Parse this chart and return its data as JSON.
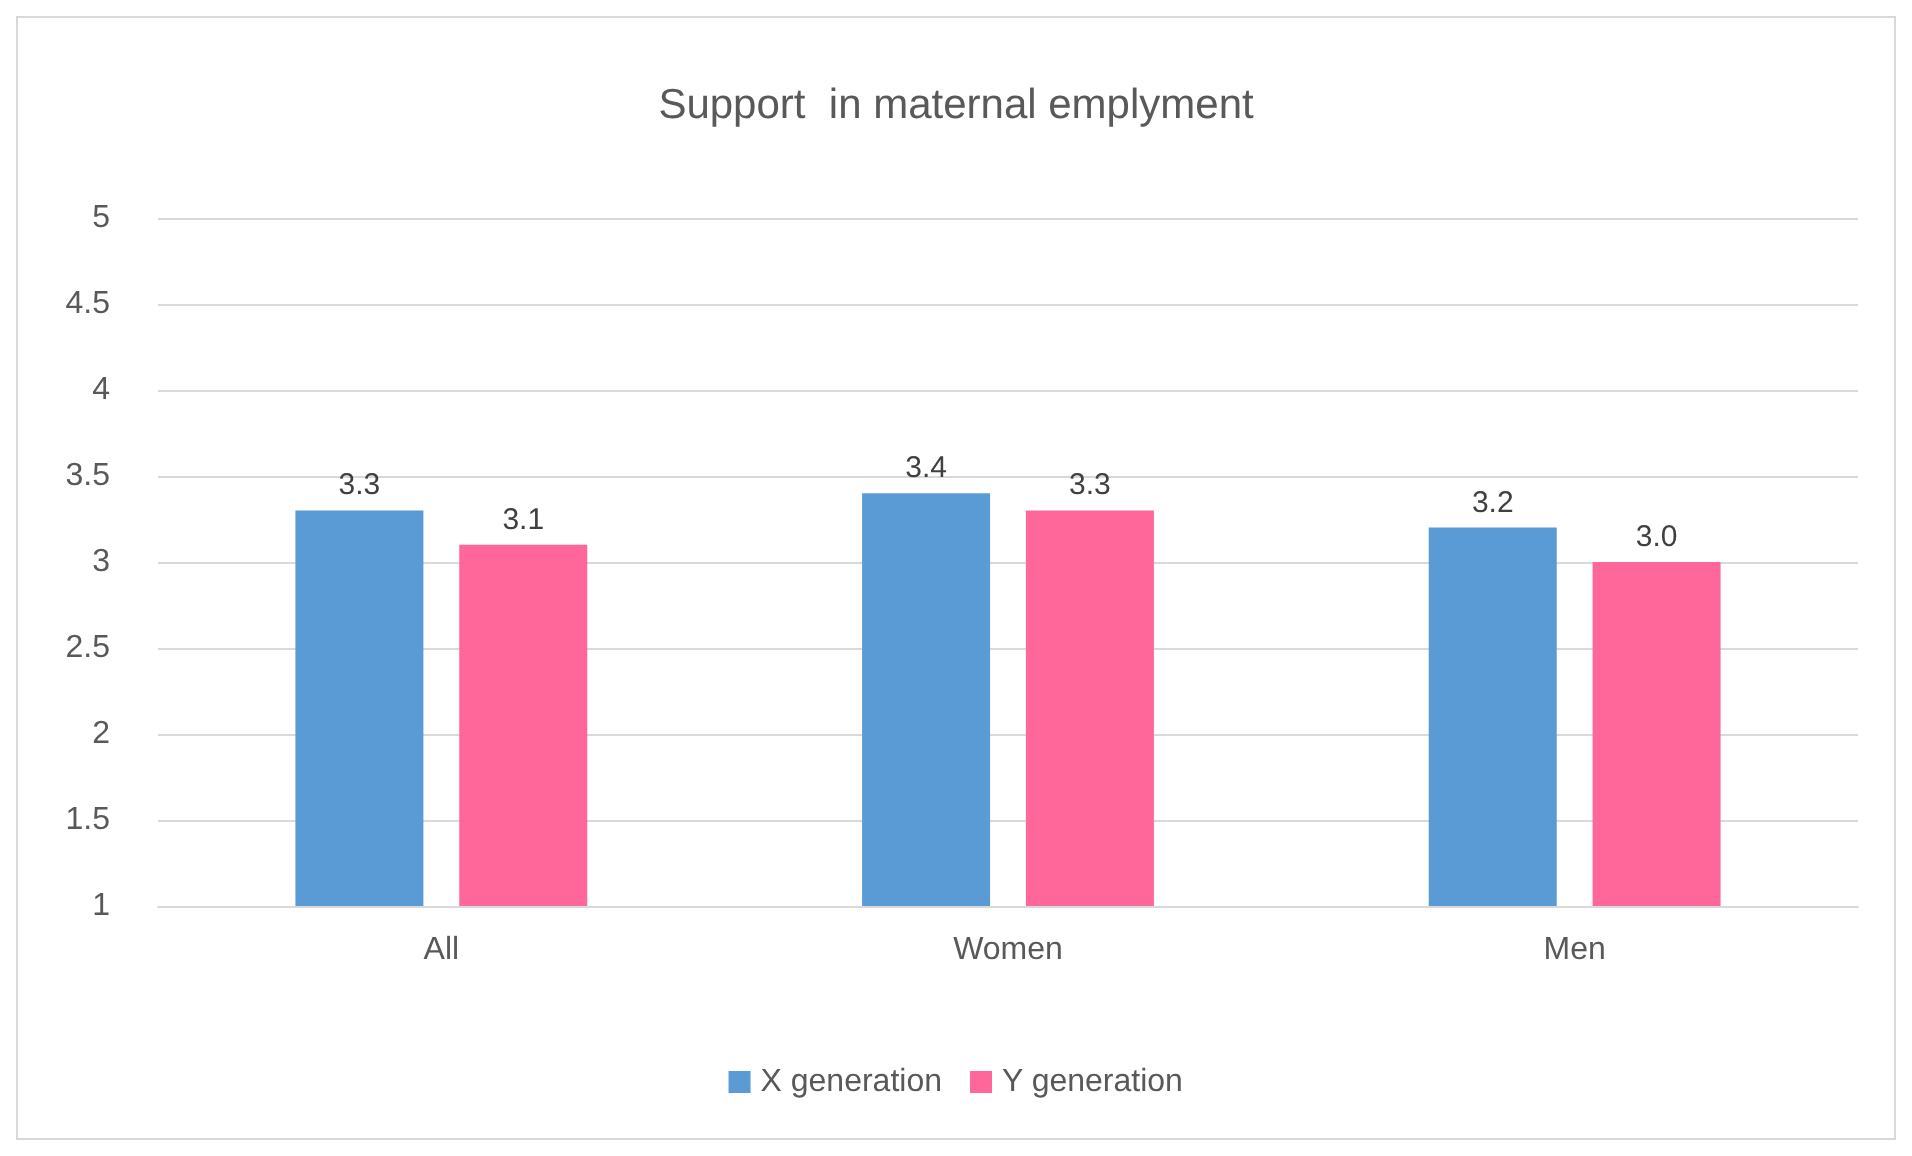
{
  "chart_data": {
    "type": "bar",
    "title": "Support  in maternal emplyment",
    "categories": [
      "All",
      "Women",
      "Men"
    ],
    "series": [
      {
        "name": "X generation",
        "color": "#5b9bd5",
        "values": [
          3.3,
          3.4,
          3.2
        ],
        "value_labels": [
          "3.3",
          "3.4",
          "3.2"
        ]
      },
      {
        "name": "Y generation",
        "color": "#ff6699",
        "values": [
          3.1,
          3.3,
          3.0
        ],
        "value_labels": [
          "3.1",
          "3.3",
          "3.0"
        ]
      }
    ],
    "ylim": [
      1,
      5
    ],
    "yticks": [
      1,
      1.5,
      2,
      2.5,
      3,
      3.5,
      4,
      4.5,
      5
    ],
    "grid": "y",
    "legend": "bottom"
  }
}
